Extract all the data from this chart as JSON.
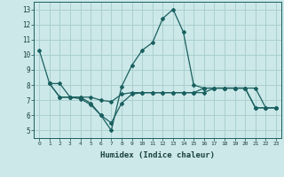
{
  "xlabel": "Humidex (Indice chaleur)",
  "ylabel": "",
  "xlim": [
    -0.5,
    23.5
  ],
  "ylim": [
    4.5,
    13.5
  ],
  "yticks": [
    5,
    6,
    7,
    8,
    9,
    10,
    11,
    12,
    13
  ],
  "xticks": [
    0,
    1,
    2,
    3,
    4,
    5,
    6,
    7,
    8,
    9,
    10,
    11,
    12,
    13,
    14,
    15,
    16,
    17,
    18,
    19,
    20,
    21,
    22,
    23
  ],
  "bg_color": "#cce8e8",
  "grid_color": "#aacfcf",
  "line_color": "#1a6060",
  "line1_x": [
    0,
    1,
    2,
    3,
    4,
    5,
    6,
    7,
    8,
    9,
    10,
    11,
    12,
    13,
    14,
    15,
    16,
    17,
    18,
    19,
    20,
    21,
    22,
    23
  ],
  "line1_y": [
    10.3,
    8.1,
    8.1,
    7.2,
    7.2,
    6.8,
    6.0,
    5.0,
    7.9,
    9.3,
    10.3,
    10.8,
    12.4,
    13.0,
    11.5,
    8.0,
    7.8,
    7.8,
    7.8,
    7.8,
    7.8,
    6.5,
    6.5,
    6.5
  ],
  "line2_x": [
    1,
    2,
    3,
    4,
    5,
    6,
    7,
    8,
    9,
    10,
    11,
    12,
    13,
    14,
    15,
    16,
    17,
    18,
    19,
    20,
    21,
    22,
    23
  ],
  "line2_y": [
    8.1,
    7.2,
    7.2,
    7.1,
    6.7,
    6.0,
    5.5,
    6.8,
    7.4,
    7.5,
    7.5,
    7.5,
    7.5,
    7.5,
    7.5,
    7.8,
    7.8,
    7.8,
    7.8,
    7.8,
    6.5,
    6.5,
    6.5
  ],
  "line3_x": [
    1,
    2,
    3,
    4,
    5,
    6,
    7,
    8,
    9,
    10,
    11,
    12,
    13,
    14,
    15,
    16,
    17,
    18,
    19,
    20,
    21,
    22,
    23
  ],
  "line3_y": [
    8.1,
    7.2,
    7.2,
    7.2,
    7.2,
    7.0,
    6.9,
    7.4,
    7.5,
    7.5,
    7.5,
    7.5,
    7.5,
    7.5,
    7.5,
    7.5,
    7.8,
    7.8,
    7.8,
    7.8,
    7.8,
    6.5,
    6.5
  ]
}
